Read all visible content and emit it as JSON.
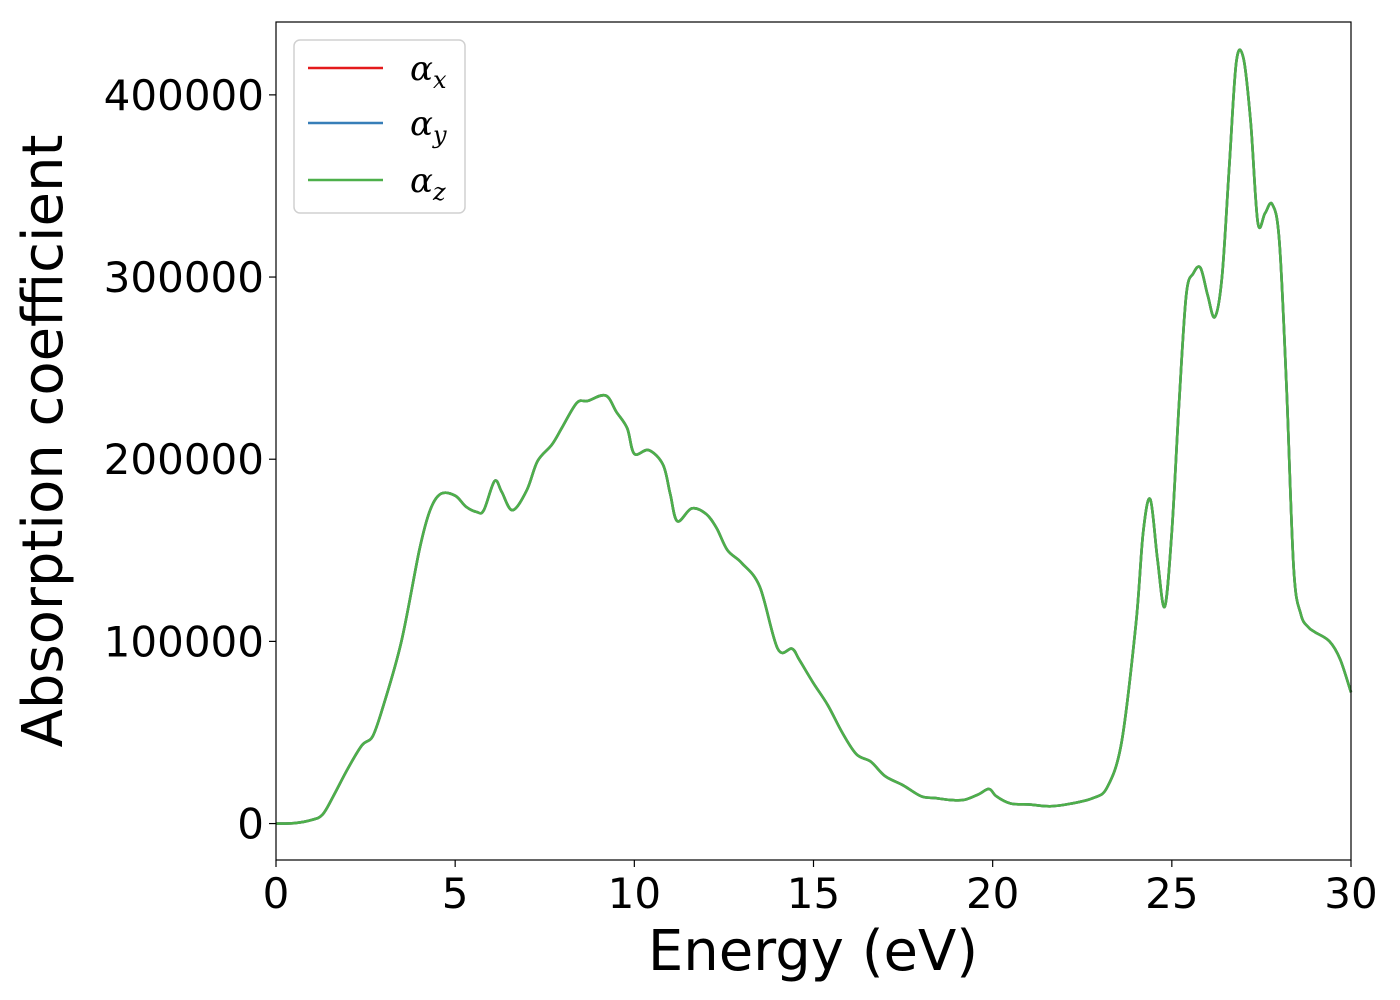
{
  "chart_data": {
    "type": "line",
    "title": "",
    "xlabel": "Energy (eV)",
    "ylabel": "Absorption coefficient",
    "xlim": [
      0,
      30
    ],
    "ylim": [
      -20000,
      440000
    ],
    "xticks": [
      0,
      5,
      10,
      15,
      20,
      25,
      30
    ],
    "xtick_labels": [
      "0",
      "5",
      "10",
      "15",
      "20",
      "25",
      "30"
    ],
    "yticks": [
      0,
      100000,
      200000,
      300000,
      400000
    ],
    "ytick_labels": [
      "0",
      "100000",
      "200000",
      "300000",
      "400000"
    ],
    "grid": false,
    "legend_position": "upper-left",
    "series": [
      {
        "name": "α",
        "subscript": "x",
        "color": "#e41a1c"
      },
      {
        "name": "α",
        "subscript": "y",
        "color": "#377eb8"
      },
      {
        "name": "α",
        "subscript": "z",
        "color": "#4daf4a"
      }
    ],
    "x": [
      0,
      0.5,
      1.0,
      1.3,
      1.6,
      2.0,
      2.4,
      2.7,
      3.0,
      3.5,
      4.0,
      4.3,
      4.6,
      5.0,
      5.3,
      5.6,
      5.8,
      6.1,
      6.3,
      6.6,
      7.0,
      7.3,
      7.7,
      8.0,
      8.4,
      8.7,
      9.2,
      9.5,
      9.8,
      10.0,
      10.4,
      10.8,
      11.0,
      11.2,
      11.6,
      12.0,
      12.3,
      12.6,
      13.0,
      13.5,
      14.0,
      14.4,
      14.6,
      15.0,
      15.4,
      15.8,
      16.2,
      16.6,
      17.0,
      17.5,
      18.0,
      18.4,
      18.8,
      19.2,
      19.6,
      19.9,
      20.1,
      20.5,
      21.0,
      21.6,
      22.2,
      22.8,
      23.2,
      23.6,
      24.0,
      24.2,
      24.4,
      24.6,
      24.8,
      25.0,
      25.2,
      25.4,
      25.6,
      25.8,
      26.0,
      26.2,
      26.4,
      26.6,
      26.8,
      27.0,
      27.2,
      27.4,
      27.6,
      27.8,
      28.0,
      28.2,
      28.4,
      28.6,
      28.8,
      29.0,
      29.4,
      29.7,
      30.0
    ],
    "y": [
      0,
      200,
      2000,
      5000,
      15000,
      30000,
      43000,
      48000,
      65000,
      100000,
      150000,
      172000,
      181000,
      180000,
      174000,
      171000,
      172000,
      188000,
      182000,
      172000,
      183000,
      199000,
      208000,
      218000,
      231000,
      232000,
      235000,
      226000,
      217000,
      203000,
      205000,
      197000,
      181000,
      166000,
      173000,
      170000,
      162000,
      150000,
      143000,
      130000,
      96000,
      96000,
      90000,
      77000,
      65000,
      50000,
      38000,
      34000,
      26000,
      21000,
      15000,
      14000,
      13000,
      13000,
      16000,
      19000,
      15000,
      11000,
      10500,
      9500,
      11000,
      14000,
      20000,
      45000,
      110000,
      160000,
      178000,
      145000,
      119000,
      160000,
      230000,
      290000,
      302000,
      305000,
      290000,
      278000,
      300000,
      360000,
      418000,
      420000,
      385000,
      330000,
      335000,
      340000,
      320000,
      240000,
      140000,
      115000,
      108000,
      105000,
      100000,
      90000,
      72000
    ]
  }
}
